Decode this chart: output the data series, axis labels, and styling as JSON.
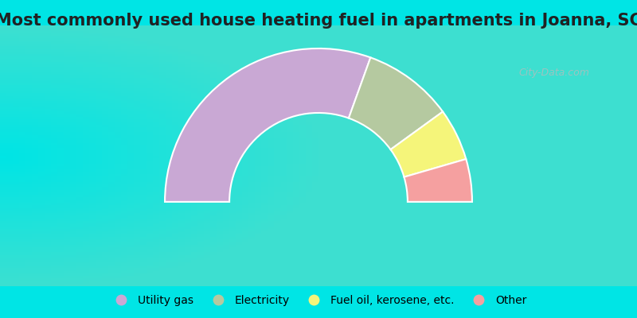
{
  "title": "Most commonly used house heating fuel in apartments in Joanna, SC",
  "segments": [
    {
      "label": "Utility gas",
      "value": 61,
      "color": "#c9a8d4"
    },
    {
      "label": "Electricity",
      "value": 19,
      "color": "#b5c9a0"
    },
    {
      "label": "Fuel oil, kerosene, etc.",
      "value": 11,
      "color": "#f5f57a"
    },
    {
      "label": "Other",
      "value": 9,
      "color": "#f5a0a0"
    }
  ],
  "bg_color_top": "#00e5e5",
  "bg_color_chart_topleft": "#c8ead8",
  "bg_color_chart_center": "#e8f5ee",
  "title_fontsize": 15,
  "legend_fontsize": 10,
  "watermark": "City-Data.com",
  "outer_r": 1.0,
  "inner_r": 0.58
}
